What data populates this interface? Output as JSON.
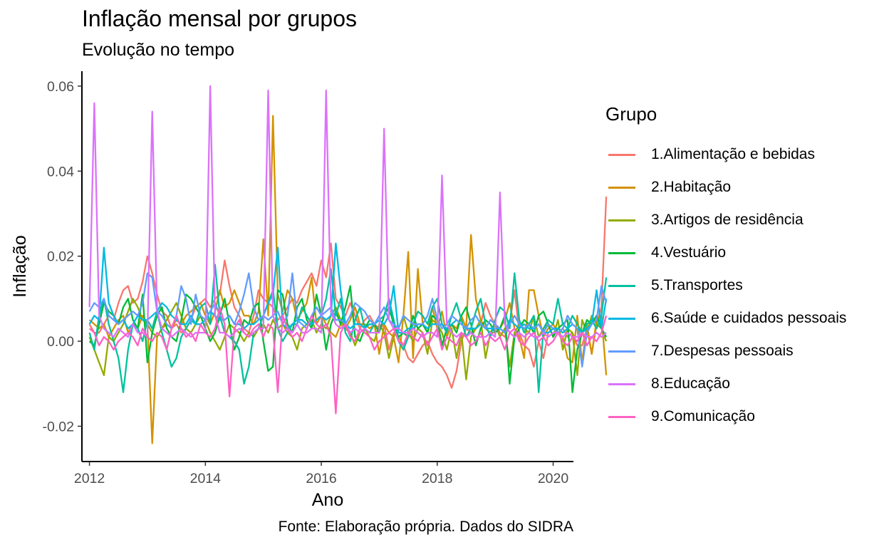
{
  "title": "Inflação mensal por grupos",
  "subtitle": "Evolução no tempo",
  "caption": "Fonte: Elaboração própria. Dados do SIDRA",
  "legend_title": "Grupo",
  "chart_data": {
    "type": "line",
    "xlabel": "Ano",
    "ylabel": "Inflação",
    "xlim": [
      2011.87,
      2020.35
    ],
    "ylim": [
      -0.0283,
      0.0635
    ],
    "x_ticks": [
      2012,
      2014,
      2016,
      2018,
      2020
    ],
    "x_tick_labels": [
      "2012",
      "2014",
      "2016",
      "2018",
      "2020"
    ],
    "y_ticks": [
      -0.02,
      0.0,
      0.02,
      0.04,
      0.06
    ],
    "y_tick_labels": [
      "-0.02",
      "0.00",
      "0.02",
      "0.04",
      "0.06"
    ],
    "grid": false,
    "legend_position": "right",
    "x_start": 2012.0,
    "x_step": 0.08333,
    "series": [
      {
        "name": "1.Alimentação e bebidas",
        "color": "#F8766D",
        "values": [
          0.004,
          0.002,
          0.002,
          0.004,
          0.006,
          0.005,
          0.009,
          0.012,
          0.013,
          0.009,
          0.01,
          0.014,
          0.02,
          0.016,
          0.011,
          0.007,
          0.006,
          0.003,
          0.004,
          0.002,
          0.003,
          0.005,
          0.008,
          0.009,
          0.01,
          0.008,
          0.01,
          0.011,
          0.019,
          0.013,
          0.008,
          0.006,
          0.003,
          0.002,
          0.006,
          0.012,
          0.01,
          0.009,
          0.008,
          0.005,
          0.006,
          0.008,
          0.01,
          0.009,
          0.012,
          0.014,
          0.016,
          0.013,
          0.019,
          0.015,
          0.023,
          0.01,
          0.008,
          0.006,
          0.009,
          0.006,
          0.003,
          0.005,
          0.006,
          0.004,
          0.003,
          0.004,
          -0.002,
          0.002,
          0.001,
          -0.001,
          -0.004,
          -0.005,
          -0.003,
          -0.001,
          0.0,
          -0.003,
          -0.005,
          -0.006,
          -0.008,
          -0.011,
          -0.007,
          0.0,
          0.003,
          0.002,
          0.003,
          0.004,
          0.009,
          0.006,
          0.004,
          0.002,
          0.001,
          0.004,
          0.012,
          0.002,
          -0.001,
          -0.002,
          -0.006,
          0.0,
          -0.004,
          0.002,
          0.003,
          0.002,
          0.003,
          0.001,
          0.002,
          -0.001,
          -0.001,
          0.003,
          -0.003,
          0.004,
          0.008,
          0.034
        ]
      },
      {
        "name": "2.Habitação",
        "color": "#D39200",
        "values": [
          0.005,
          0.004,
          0.003,
          0.004,
          0.001,
          0.003,
          0.005,
          0.006,
          0.002,
          0.004,
          0.003,
          0.006,
          0.004,
          -0.024,
          0.001,
          0.003,
          0.004,
          0.003,
          0.005,
          0.004,
          0.006,
          0.007,
          0.008,
          0.009,
          0.006,
          0.004,
          0.007,
          0.012,
          0.008,
          0.009,
          0.012,
          0.009,
          0.006,
          0.006,
          0.004,
          0.007,
          0.024,
          0.006,
          0.053,
          0.011,
          0.007,
          0.012,
          0.01,
          0.005,
          0.007,
          0.009,
          0.015,
          0.004,
          0.006,
          0.004,
          0.002,
          0.001,
          0.004,
          0.003,
          0.005,
          0.008,
          0.004,
          0.004,
          0.003,
          0.004,
          -0.003,
          0.004,
          0.002,
          0.001,
          -0.005,
          0.006,
          0.021,
          -0.004,
          0.017,
          0.004,
          0.002,
          0.008,
          0.003,
          0.007,
          0.001,
          0.004,
          0.003,
          0.006,
          0.003,
          0.025,
          0.01,
          0.005,
          0.003,
          0.002,
          0.002,
          0.003,
          0.005,
          0.009,
          0.003,
          0.001,
          -0.004,
          0.012,
          0.012,
          0.006,
          0.001,
          0.003,
          0.004,
          0.002,
          0.001,
          -0.004,
          -0.005,
          0.006,
          -0.005,
          0.004,
          -0.003,
          0.005,
          0.006,
          -0.008
        ]
      },
      {
        "name": "3.Artigos de residência",
        "color": "#93AA00",
        "values": [
          0.001,
          -0.002,
          -0.005,
          -0.008,
          0.001,
          0.0,
          0.002,
          0.004,
          0.007,
          0.01,
          0.008,
          0.005,
          0.004,
          0.002,
          0.001,
          0.003,
          0.005,
          0.007,
          0.009,
          0.006,
          0.003,
          0.002,
          0.004,
          0.006,
          0.005,
          0.002,
          0.0,
          -0.002,
          0.001,
          0.004,
          0.003,
          0.002,
          0.0,
          0.002,
          0.001,
          0.003,
          0.004,
          0.002,
          0.005,
          0.003,
          0.004,
          0.002,
          0.001,
          -0.002,
          0.003,
          0.004,
          0.005,
          0.002,
          0.004,
          0.003,
          0.006,
          0.008,
          0.005,
          0.003,
          0.002,
          -0.001,
          0.002,
          0.003,
          0.001,
          0.0,
          0.004,
          0.002,
          -0.004,
          0.001,
          0.003,
          0.006,
          0.002,
          0.0,
          0.003,
          0.002,
          -0.003,
          0.005,
          0.004,
          0.002,
          -0.002,
          0.003,
          -0.004,
          0.002,
          -0.009,
          0.001,
          0.003,
          0.005,
          -0.004,
          0.002,
          0.004,
          0.001,
          0.003,
          -0.006,
          0.002,
          0.004,
          0.003,
          0.002,
          0.006,
          0.001,
          0.003,
          0.004,
          0.001,
          0.005,
          -0.002,
          0.003,
          0.002,
          -0.008,
          0.005,
          0.002,
          0.006,
          0.004,
          0.003,
          0.0
        ]
      },
      {
        "name": "4.Vestuário",
        "color": "#00BA38",
        "values": [
          0.0,
          -0.001,
          0.004,
          0.009,
          0.007,
          0.006,
          0.004,
          0.008,
          0.01,
          0.005,
          0.003,
          0.011,
          -0.005,
          0.002,
          0.006,
          0.008,
          0.003,
          0.001,
          0.0,
          0.005,
          0.011,
          0.01,
          0.008,
          0.006,
          0.003,
          0.0,
          0.002,
          0.006,
          0.01,
          0.004,
          -0.002,
          0.001,
          0.005,
          0.004,
          0.008,
          0.009,
          0.0,
          -0.007,
          -0.006,
          0.012,
          0.011,
          0.004,
          0.002,
          0.008,
          0.01,
          0.005,
          0.003,
          0.011,
          0.006,
          -0.002,
          0.004,
          0.007,
          0.004,
          0.008,
          0.013,
          0.001,
          0.0,
          0.003,
          0.005,
          0.004,
          0.002,
          0.006,
          0.008,
          0.004,
          0.001,
          0.002,
          0.001,
          0.006,
          0.003,
          0.004,
          0.002,
          0.006,
          0.005,
          -0.001,
          0.003,
          0.004,
          0.002,
          0.006,
          0.008,
          0.004,
          -0.001,
          0.003,
          0.005,
          0.004,
          0.002,
          0.003,
          0.006,
          -0.01,
          0.001,
          0.003,
          0.005,
          0.004,
          0.002,
          0.006,
          0.007,
          0.004,
          0.001,
          0.003,
          0.004,
          0.005,
          -0.012,
          -0.002,
          0.002,
          0.005,
          0.004,
          0.006,
          0.003,
          0.001
        ]
      },
      {
        "name": "5.Transportes",
        "color": "#00C19F",
        "values": [
          0.002,
          -0.002,
          0.006,
          0.01,
          0.004,
          0.0,
          -0.004,
          -0.012,
          -0.002,
          0.004,
          0.003,
          0.0,
          0.005,
          0.003,
          0.007,
          0.002,
          -0.002,
          -0.006,
          -0.004,
          0.001,
          0.003,
          0.005,
          0.004,
          0.008,
          0.009,
          0.004,
          0.018,
          0.006,
          0.002,
          0.001,
          0.0,
          -0.002,
          -0.01,
          -0.006,
          0.002,
          0.003,
          0.006,
          0.009,
          0.012,
          0.003,
          0.0,
          0.002,
          0.004,
          0.004,
          0.008,
          0.006,
          0.004,
          0.005,
          0.006,
          0.01,
          0.017,
          0.006,
          0.01,
          0.002,
          0.0,
          0.005,
          0.008,
          0.003,
          0.002,
          0.004,
          0.005,
          0.006,
          0.01,
          0.005,
          0.0,
          -0.002,
          0.001,
          0.004,
          0.007,
          0.006,
          0.004,
          0.008,
          0.01,
          0.004,
          0.002,
          0.006,
          0.009,
          0.005,
          0.001,
          0.003,
          0.007,
          0.01,
          0.004,
          0.001,
          0.005,
          0.008,
          0.007,
          0.003,
          0.016,
          0.005,
          0.002,
          0.004,
          0.006,
          -0.012,
          0.003,
          0.005,
          0.004,
          0.01,
          0.004,
          0.003,
          0.006,
          0.004,
          0.002,
          0.004,
          0.005,
          0.003,
          0.006,
          0.015
        ]
      },
      {
        "name": "6.Saúde e cuidados pessoais",
        "color": "#00B9E3",
        "values": [
          0.004,
          0.006,
          0.005,
          0.022,
          0.009,
          0.006,
          0.004,
          0.005,
          0.003,
          0.004,
          0.006,
          0.005,
          0.005,
          0.006,
          0.007,
          0.009,
          0.008,
          0.006,
          0.005,
          0.004,
          0.004,
          0.006,
          0.004,
          0.004,
          0.005,
          0.007,
          0.006,
          0.005,
          0.005,
          0.006,
          0.004,
          0.004,
          0.003,
          0.004,
          0.004,
          0.005,
          0.006,
          0.009,
          0.011,
          0.022,
          0.004,
          0.003,
          0.004,
          0.005,
          0.005,
          0.004,
          0.004,
          0.005,
          0.006,
          0.005,
          0.006,
          0.023,
          0.012,
          0.004,
          0.003,
          0.004,
          0.004,
          0.003,
          0.004,
          0.004,
          0.005,
          0.004,
          0.006,
          0.013,
          0.002,
          0.002,
          0.003,
          0.003,
          0.004,
          0.004,
          0.003,
          0.004,
          0.004,
          0.004,
          0.003,
          0.004,
          0.005,
          0.004,
          0.003,
          0.003,
          0.003,
          0.004,
          0.003,
          0.003,
          0.003,
          0.003,
          0.002,
          0.005,
          0.004,
          0.003,
          0.004,
          0.003,
          0.003,
          0.004,
          0.002,
          0.002,
          0.003,
          0.003,
          0.002,
          0.003,
          0.004,
          0.003,
          0.002,
          0.003,
          0.004,
          0.012,
          0.003,
          0.01
        ]
      },
      {
        "name": "7.Despesas pessoais",
        "color": "#619CFF",
        "values": [
          0.007,
          0.009,
          0.008,
          0.01,
          0.006,
          0.005,
          0.004,
          0.005,
          0.006,
          0.007,
          0.006,
          0.009,
          0.016,
          0.015,
          0.007,
          0.006,
          0.004,
          0.003,
          0.006,
          0.013,
          0.01,
          0.004,
          0.011,
          0.006,
          0.005,
          0.007,
          0.009,
          0.006,
          0.005,
          0.006,
          0.004,
          0.007,
          0.011,
          0.016,
          0.008,
          0.005,
          0.006,
          0.005,
          0.006,
          0.007,
          0.004,
          0.006,
          0.016,
          0.005,
          0.004,
          0.003,
          0.006,
          0.008,
          0.006,
          0.007,
          0.008,
          0.005,
          0.005,
          0.004,
          0.006,
          0.009,
          0.008,
          0.007,
          0.005,
          0.004,
          0.006,
          0.008,
          0.005,
          0.004,
          0.003,
          0.006,
          0.005,
          0.004,
          0.004,
          0.004,
          0.006,
          0.01,
          0.005,
          0.003,
          0.004,
          0.006,
          0.005,
          0.004,
          0.003,
          0.005,
          0.006,
          0.004,
          0.003,
          0.005,
          0.004,
          0.003,
          0.002,
          0.004,
          0.006,
          0.004,
          0.003,
          0.004,
          0.003,
          0.004,
          0.002,
          0.004,
          0.003,
          0.002,
          0.003,
          0.006,
          0.004,
          0.003,
          -0.006,
          0.002,
          0.004,
          0.005,
          0.013,
          0.009
        ]
      },
      {
        "name": "8.Educação",
        "color": "#DB72FB",
        "values": [
          0.008,
          0.056,
          0.006,
          0.003,
          0.002,
          0.001,
          0.003,
          0.002,
          0.001,
          0.004,
          0.002,
          0.002,
          0.001,
          0.054,
          0.007,
          0.003,
          0.002,
          0.001,
          0.002,
          0.003,
          0.002,
          0.001,
          0.002,
          0.002,
          0.002,
          0.06,
          0.006,
          0.002,
          0.002,
          0.001,
          0.002,
          0.003,
          0.002,
          0.001,
          0.002,
          0.003,
          0.003,
          0.059,
          0.006,
          0.003,
          0.002,
          0.003,
          0.002,
          0.004,
          0.002,
          0.002,
          0.003,
          0.003,
          0.002,
          0.059,
          0.007,
          0.004,
          0.003,
          0.004,
          0.002,
          0.003,
          0.002,
          0.003,
          0.002,
          0.002,
          0.002,
          0.05,
          0.005,
          0.003,
          0.003,
          0.002,
          0.002,
          0.003,
          0.002,
          0.001,
          0.002,
          0.002,
          0.001,
          0.039,
          0.004,
          0.002,
          0.001,
          0.002,
          0.001,
          0.002,
          0.001,
          0.001,
          0.001,
          0.002,
          0.001,
          0.035,
          0.004,
          0.002,
          0.001,
          0.002,
          0.001,
          0.002,
          0.001,
          0.001,
          0.002,
          0.001,
          0.002,
          0.002,
          0.001,
          0.002,
          0.001,
          0.001,
          0.002,
          0.001,
          0.001,
          0.002,
          0.001,
          0.002
        ]
      },
      {
        "name": "9.Comunicação",
        "color": "#FF61C3",
        "values": [
          0.003,
          0.002,
          -0.001,
          0.001,
          0.0,
          -0.002,
          0.0,
          0.001,
          0.002,
          0.001,
          -0.001,
          0.003,
          0.001,
          0.0,
          0.002,
          0.001,
          -0.002,
          0.003,
          0.006,
          0.003,
          0.001,
          0.002,
          0.0,
          0.004,
          0.002,
          0.001,
          0.003,
          0.008,
          0.004,
          -0.013,
          0.003,
          0.005,
          0.002,
          0.001,
          0.003,
          0.004,
          0.001,
          0.004,
          0.003,
          -0.012,
          0.006,
          0.003,
          0.001,
          0.002,
          0.0,
          0.003,
          0.006,
          0.004,
          0.003,
          0.004,
          0.001,
          -0.017,
          0.002,
          0.004,
          0.001,
          0.0,
          0.003,
          0.002,
          0.001,
          -0.002,
          0.0,
          0.001,
          0.002,
          0.003,
          0.0,
          -0.001,
          0.002,
          0.001,
          0.0,
          0.002,
          -0.001,
          0.001,
          0.003,
          -0.002,
          0.001,
          0.0,
          -0.001,
          0.002,
          0.001,
          -0.001,
          0.0,
          0.002,
          -0.001,
          0.001,
          0.0,
          0.001,
          -0.002,
          0.002,
          0.003,
          0.0,
          -0.001,
          0.001,
          0.002,
          0.0,
          0.001,
          -0.001,
          0.0,
          0.002,
          0.0,
          -0.001,
          0.001,
          0.0,
          0.002,
          -0.001,
          0.001,
          0.0,
          0.002,
          0.006
        ]
      }
    ]
  }
}
